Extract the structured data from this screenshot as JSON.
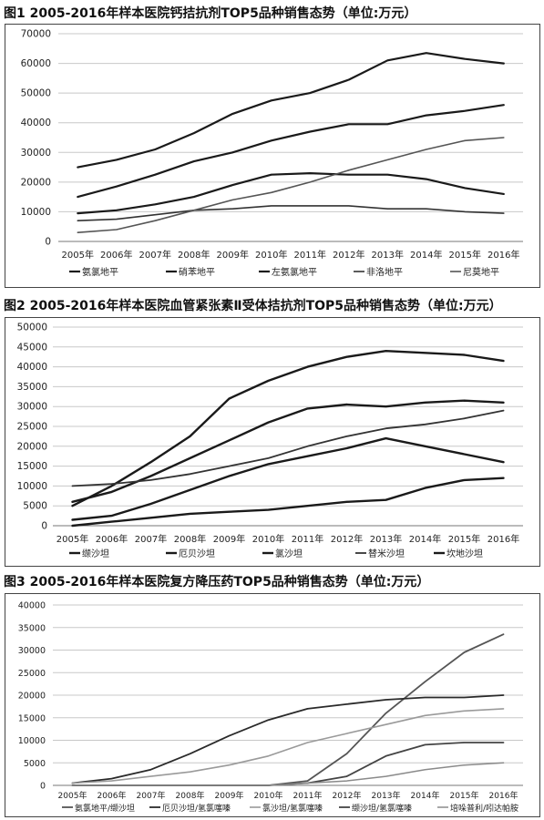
{
  "chart_data": [
    {
      "type": "line",
      "title": "图1  2005-2016年样本医院钙拮抗剂TOP5品种销售态势（单位:万元）",
      "categories": [
        "2005年",
        "2006年",
        "2007年",
        "2008年",
        "2009年",
        "2010年",
        "2011年",
        "2012年",
        "2013年",
        "2014年",
        "2015年",
        "2016年"
      ],
      "ylim": [
        0,
        70000
      ],
      "yticks": [
        0,
        10000,
        20000,
        30000,
        40000,
        50000,
        60000,
        70000
      ],
      "grid": true,
      "legend_position": "bottom",
      "series": [
        {
          "name": "氨氯地平",
          "values": [
            25000,
            27500,
            31000,
            36500,
            43000,
            47500,
            50000,
            54500,
            61000,
            63500,
            61500,
            60000
          ],
          "color": "#1a1a1a",
          "width": 2.2
        },
        {
          "name": "硝苯地平",
          "values": [
            15000,
            18500,
            22500,
            27000,
            30000,
            34000,
            37000,
            39500,
            39500,
            42500,
            44000,
            46000
          ],
          "color": "#1a1a1a",
          "width": 2.2
        },
        {
          "name": "左氨氯地平",
          "values": [
            9500,
            10500,
            12500,
            15000,
            19000,
            22500,
            23000,
            22500,
            22500,
            21000,
            18000,
            16000
          ],
          "color": "#1a1a1a",
          "width": 2.2
        },
        {
          "name": "非洛地平",
          "values": [
            7000,
            7500,
            9000,
            10500,
            11000,
            12000,
            12000,
            12000,
            11000,
            11000,
            10000,
            9500
          ],
          "color": "#333333",
          "width": 1.6
        },
        {
          "name": "尼莫地平",
          "values": [
            3000,
            4000,
            7000,
            10500,
            14000,
            16500,
            20000,
            24000,
            27500,
            31000,
            34000,
            35000
          ],
          "color": "#555555",
          "width": 1.6
        }
      ]
    },
    {
      "type": "line",
      "title": "图2  2005-2016年样本医院血管紧张素Ⅱ受体拮抗剂TOP5品种销售态势（单位:万元）",
      "categories": [
        "2005年",
        "2006年",
        "2007年",
        "2008年",
        "2009年",
        "2010年",
        "2011年",
        "2012年",
        "2013年",
        "2014年",
        "2015年",
        "2016年"
      ],
      "ylim": [
        0,
        50000
      ],
      "yticks": [
        0,
        5000,
        10000,
        15000,
        20000,
        25000,
        30000,
        35000,
        40000,
        45000,
        50000
      ],
      "grid": true,
      "legend_position": "bottom",
      "series": [
        {
          "name": "缬沙坦",
          "values": [
            5000,
            10000,
            16000,
            22500,
            32000,
            36500,
            40000,
            42500,
            44000,
            43500,
            43000,
            41500
          ],
          "color": "#1a1a1a",
          "width": 2.4
        },
        {
          "name": "厄贝沙坦",
          "values": [
            6000,
            8500,
            12500,
            17000,
            21500,
            26000,
            29500,
            30500,
            30000,
            31000,
            31500,
            31000
          ],
          "color": "#1a1a1a",
          "width": 2.4
        },
        {
          "name": "氯沙坦",
          "values": [
            1500,
            2500,
            5500,
            9000,
            12500,
            15500,
            17500,
            19500,
            22000,
            20000,
            18000,
            16000
          ],
          "color": "#1a1a1a",
          "width": 2.4
        },
        {
          "name": "替米沙坦",
          "values": [
            10000,
            10500,
            11500,
            13000,
            15000,
            17000,
            20000,
            22500,
            24500,
            25500,
            27000,
            29000
          ],
          "color": "#333333",
          "width": 1.8
        },
        {
          "name": "坎地沙坦",
          "values": [
            0,
            1000,
            2000,
            3000,
            3500,
            4000,
            5000,
            6000,
            6500,
            9500,
            11500,
            12000
          ],
          "color": "#1a1a1a",
          "width": 2.4
        }
      ]
    },
    {
      "type": "line",
      "title": "图3  2005-2016年样本医院复方降压药TOP5品种销售态势（单位:万元）",
      "categories": [
        "2005年",
        "2006年",
        "2007年",
        "2008年",
        "2009年",
        "2010年",
        "2011年",
        "2012年",
        "2013年",
        "2014年",
        "2015年",
        "2016年"
      ],
      "ylim": [
        0,
        40000
      ],
      "yticks": [
        0,
        5000,
        10000,
        15000,
        20000,
        25000,
        30000,
        35000,
        40000
      ],
      "grid": true,
      "legend_position": "bottom",
      "series": [
        {
          "name": "氨氯地平/缬沙坦",
          "values": [
            0,
            0,
            0,
            0,
            0,
            0,
            1000,
            7000,
            16000,
            23000,
            29500,
            33500
          ],
          "color": "#555555",
          "width": 1.8
        },
        {
          "name": "厄贝沙坦/氢氯噻嗪",
          "values": [
            500,
            1500,
            3500,
            7000,
            11000,
            14500,
            17000,
            18000,
            19000,
            19500,
            19500,
            20000
          ],
          "color": "#2a2a2a",
          "width": 1.8
        },
        {
          "name": "氯沙坦/氢氯噻嗪",
          "values": [
            500,
            1000,
            2000,
            3000,
            4500,
            6500,
            9500,
            11500,
            13500,
            15500,
            16500,
            17000
          ],
          "color": "#9a9a9a",
          "width": 1.6
        },
        {
          "name": "缬沙坦/氢氯噻嗪",
          "values": [
            0,
            0,
            0,
            0,
            0,
            0,
            500,
            2000,
            6500,
            9000,
            9500,
            9500
          ],
          "color": "#444444",
          "width": 1.8
        },
        {
          "name": "培哚普利/吲达帕胺",
          "values": [
            0,
            0,
            0,
            0,
            0,
            0,
            500,
            1000,
            2000,
            3500,
            4500,
            5000
          ],
          "color": "#8a8a8a",
          "width": 1.5
        }
      ]
    }
  ]
}
